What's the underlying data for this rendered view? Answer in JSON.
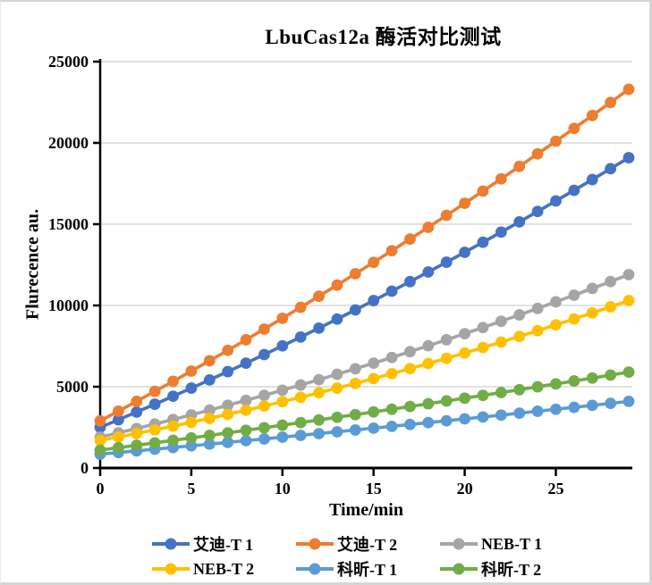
{
  "chart_data": {
    "type": "line",
    "title": "LbuCas12a 酶活对比测试",
    "xlabel": "Time/min",
    "ylabel": "Flurecence au.",
    "x": [
      0,
      1,
      2,
      3,
      4,
      5,
      6,
      7,
      8,
      9,
      10,
      11,
      12,
      13,
      14,
      15,
      16,
      17,
      18,
      19,
      20,
      21,
      22,
      23,
      24,
      25,
      26,
      27,
      28,
      29
    ],
    "xlim": [
      0,
      29
    ],
    "ylim": [
      0,
      25000
    ],
    "xticks": [
      0,
      5,
      10,
      15,
      20,
      25
    ],
    "yticks": [
      0,
      5000,
      10000,
      15000,
      20000,
      25000
    ],
    "grid": "horizontal",
    "gridline_color": "#D9D9D9",
    "axis_color": "#000000",
    "marker": "circle",
    "legend_position": "bottom",
    "legend_rows": 2,
    "legend_columns": 3,
    "series": [
      {
        "name": "艾迪-T 1",
        "color": "#4472C4",
        "values": [
          2500,
          2968,
          3443,
          3925,
          4416,
          4913,
          5418,
          5931,
          6450,
          6978,
          7513,
          8055,
          8605,
          9162,
          9727,
          10299,
          10878,
          11465,
          12060,
          12661,
          13271,
          13887,
          14512,
          15143,
          15782,
          16429,
          17083,
          17744,
          18413,
          19089
        ]
      },
      {
        "name": "艾迪-T 2",
        "color": "#ED7D31",
        "values": [
          2900,
          3497,
          4102,
          4714,
          5334,
          5961,
          6596,
          7238,
          7888,
          8546,
          9212,
          9885,
          10566,
          11254,
          11950,
          12653,
          13364,
          14083,
          14809,
          15543,
          16284,
          17033,
          17790,
          18554,
          19325,
          20105,
          20892,
          21686,
          22488,
          23298
        ]
      },
      {
        "name": "NEB-T 1",
        "color": "#A5A5A5",
        "values": [
          1900,
          2162,
          2430,
          2703,
          2983,
          3269,
          3560,
          3858,
          4161,
          4470,
          4785,
          5106,
          5433,
          5766,
          6105,
          6449,
          6800,
          7156,
          7519,
          7887,
          8262,
          8642,
          9028,
          9420,
          9818,
          10222,
          10632,
          11048,
          11469,
          11897
        ]
      },
      {
        "name": "NEB-T 2",
        "color": "#FFC000",
        "values": [
          1700,
          1910,
          2126,
          2349,
          2577,
          2812,
          3053,
          3300,
          3554,
          3813,
          4079,
          4351,
          4629,
          4913,
          5204,
          5500,
          5803,
          6112,
          6427,
          6748,
          7076,
          7409,
          7749,
          8095,
          8447,
          8806,
          9170,
          9541,
          9918,
          10301
        ]
      },
      {
        "name": "科昕-T 1",
        "color": "#5B9BD5",
        "values": [
          850,
          951,
          1054,
          1156,
          1260,
          1365,
          1470,
          1576,
          1682,
          1789,
          1898,
          2007,
          2117,
          2227,
          2338,
          2451,
          2563,
          2677,
          2791,
          2906,
          3022,
          3139,
          3256,
          3374,
          3493,
          3613,
          3733,
          3854,
          3976,
          4099
        ]
      },
      {
        "name": "科昕-T 2",
        "color": "#70AD47",
        "values": [
          1100,
          1248,
          1397,
          1547,
          1699,
          1852,
          2006,
          2161,
          2318,
          2476,
          2635,
          2795,
          2957,
          3120,
          3284,
          3450,
          3617,
          3785,
          3954,
          4125,
          4296,
          4469,
          4644,
          4819,
          4996,
          5174,
          5353,
          5533,
          5715,
          5898
        ]
      }
    ]
  }
}
